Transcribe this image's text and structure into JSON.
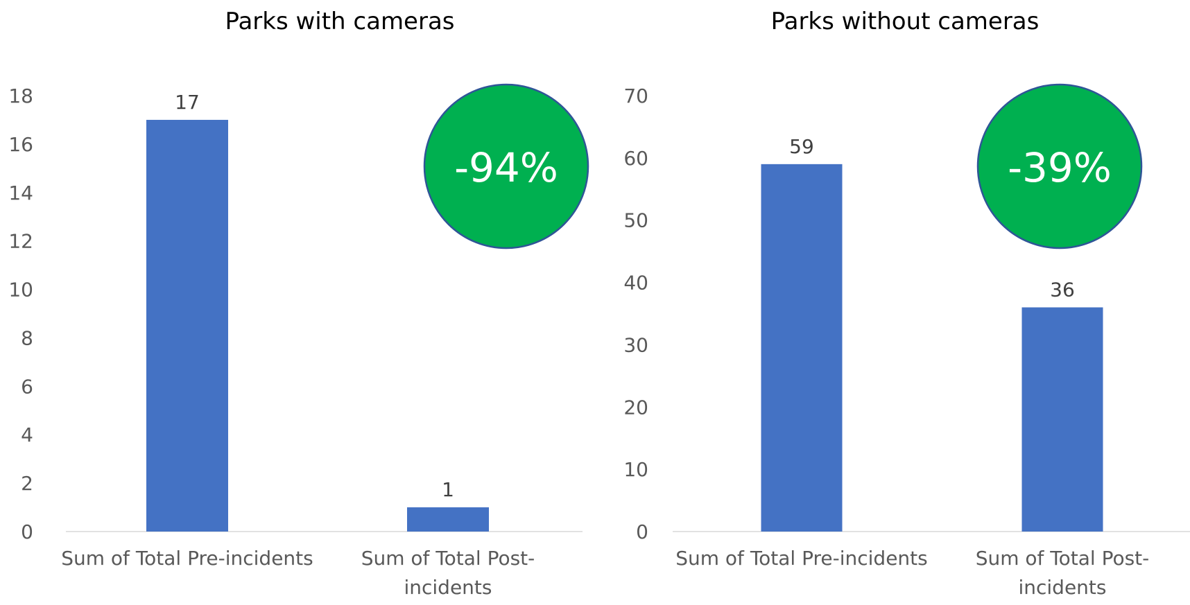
{
  "chart_data": [
    {
      "type": "bar",
      "title": "Parks with cameras",
      "xlabel": "",
      "ylabel": "",
      "categories": [
        "Sum of Total Pre-incidents",
        "Sum of Total Post-incidents"
      ],
      "category_label_lines": [
        [
          "Sum of Total Pre-incidents"
        ],
        [
          "Sum of Total Post-",
          "incidents"
        ]
      ],
      "values": [
        17,
        1
      ],
      "data_labels": [
        "17",
        "1"
      ],
      "ylim": [
        0,
        18
      ],
      "yticks": [
        0,
        2,
        4,
        6,
        8,
        10,
        12,
        14,
        16,
        18
      ],
      "grid": false,
      "legend": "none",
      "bar_color": "#4472C4",
      "badge": {
        "text": "-94%",
        "fill": "#00B050",
        "border": "#2F5597",
        "text_color": "#FFFFFF"
      }
    },
    {
      "type": "bar",
      "title": "Parks without cameras",
      "xlabel": "",
      "ylabel": "",
      "categories": [
        "Sum of Total Pre-incidents",
        "Sum of Total Post-incidents"
      ],
      "category_label_lines": [
        [
          "Sum of Total Pre-incidents"
        ],
        [
          "Sum of Total Post-",
          "incidents"
        ]
      ],
      "values": [
        59,
        36
      ],
      "data_labels": [
        "59",
        "36"
      ],
      "ylim": [
        0,
        70
      ],
      "yticks": [
        0,
        10,
        20,
        30,
        40,
        50,
        60,
        70
      ],
      "grid": false,
      "legend": "none",
      "bar_color": "#4472C4",
      "badge": {
        "text": "-39%",
        "fill": "#00B050",
        "border": "#2F5597",
        "text_color": "#FFFFFF"
      }
    }
  ]
}
